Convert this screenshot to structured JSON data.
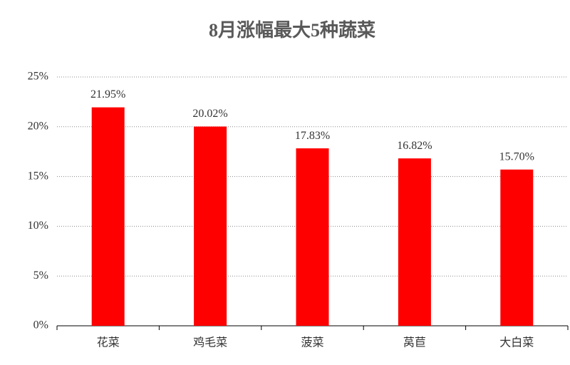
{
  "chart_data": {
    "type": "bar",
    "title": "8月涨幅最大5种蔬菜",
    "categories": [
      "花菜",
      "鸡毛菜",
      "菠菜",
      "莴苣",
      "大白菜"
    ],
    "values": [
      21.95,
      20.02,
      17.83,
      16.82,
      15.7
    ],
    "value_labels": [
      "21.95%",
      "20.02%",
      "17.83%",
      "16.82%",
      "15.70%"
    ],
    "color": "#ff0000",
    "ylim": [
      0,
      25
    ],
    "yticks": [
      {
        "value": 0,
        "label": "0%"
      },
      {
        "value": 5,
        "label": "5%"
      },
      {
        "value": 10,
        "label": "10%"
      },
      {
        "value": 15,
        "label": "15%"
      },
      {
        "value": 20,
        "label": "20%"
      },
      {
        "value": 25,
        "label": "25%"
      }
    ],
    "grid": true
  }
}
